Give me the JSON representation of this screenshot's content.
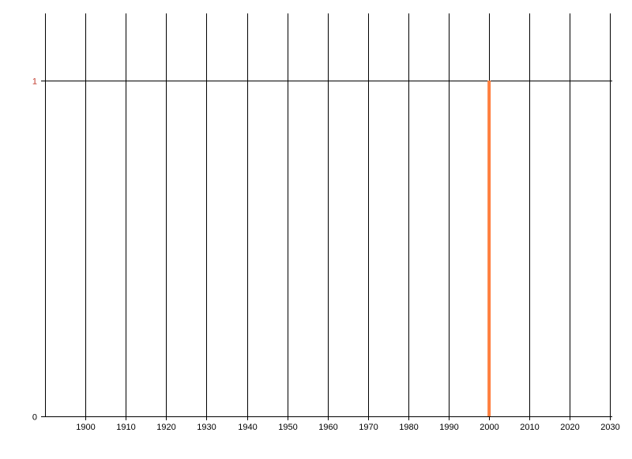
{
  "chart_data": {
    "type": "bar",
    "title": "",
    "xlabel": "",
    "ylabel": "",
    "x": [
      2000
    ],
    "values": [
      1
    ],
    "xlim": [
      1890,
      2030.5
    ],
    "ylim": [
      0,
      1.2
    ],
    "x_ticks": [
      "1900",
      "1910",
      "1920",
      "1930",
      "1940",
      "1950",
      "1960",
      "1970",
      "1980",
      "1990",
      "2000",
      "2010",
      "2020",
      "2030"
    ],
    "y_ticks": [
      "0",
      "1"
    ],
    "grid": true,
    "legend": "none",
    "colors": {
      "bar": "#ff7f3f",
      "grid": "#000000",
      "y_tick_1": "#c0392b",
      "y_tick_0": "#000000"
    }
  }
}
